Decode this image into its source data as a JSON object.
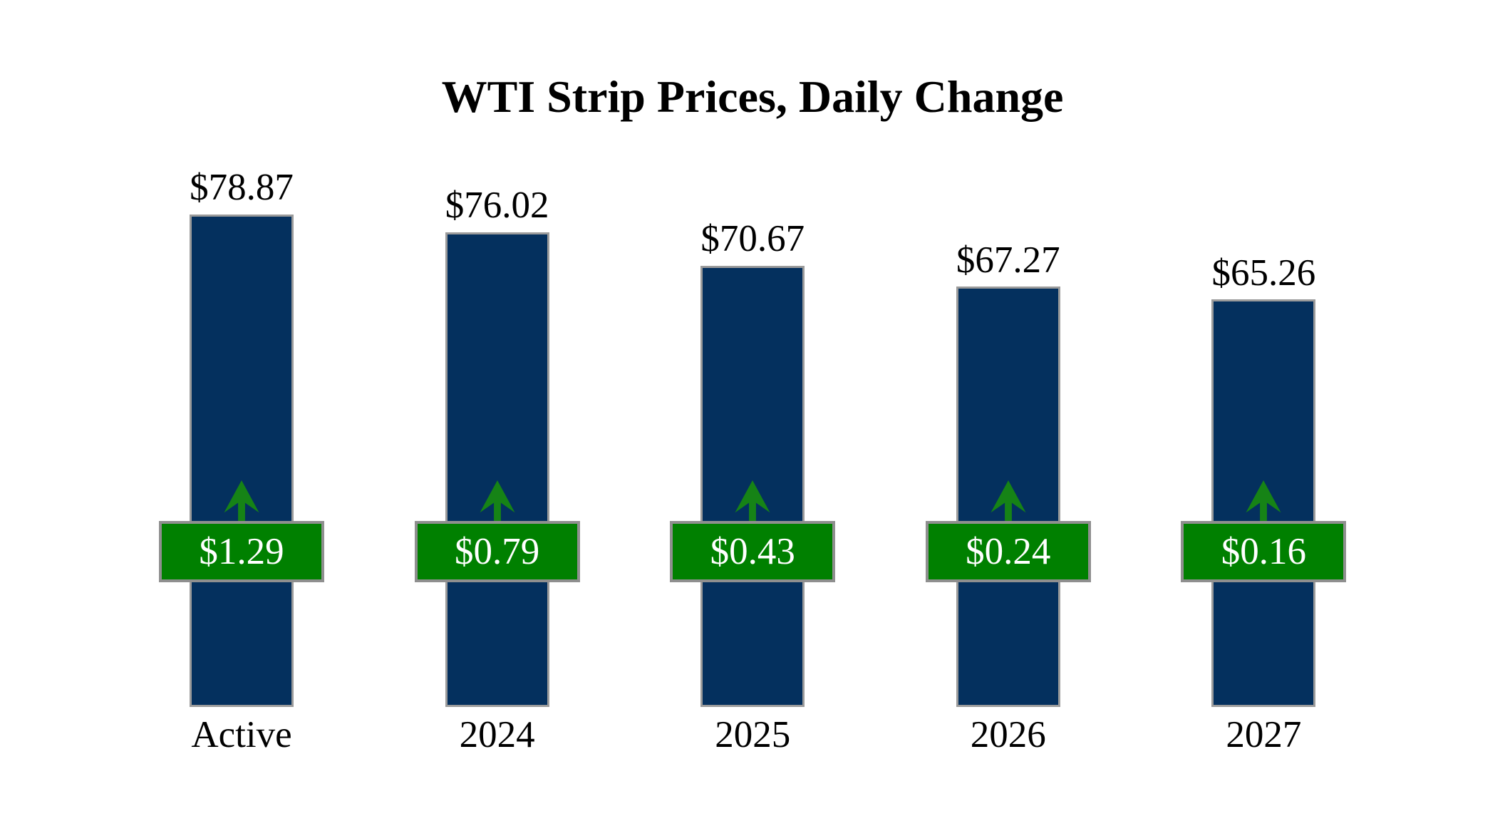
{
  "page": {
    "background": "#FFFFFF"
  },
  "chart_data": {
    "type": "bar",
    "title": "WTI Strip Prices, Daily Change",
    "categories": [
      "Active",
      "2024",
      "2025",
      "2026",
      "2027"
    ],
    "series": [
      {
        "name": "WTI strip price (US$/bbl)",
        "role": "bar-height",
        "values": [
          78.87,
          76.02,
          70.67,
          67.27,
          65.26
        ],
        "labels": [
          "$78.87",
          "$76.02",
          "$70.67",
          "$67.27",
          "$65.26"
        ]
      },
      {
        "name": "Daily change (US$)",
        "role": "badge-overlay",
        "values": [
          1.29,
          0.79,
          0.43,
          0.24,
          0.16
        ],
        "labels": [
          "$1.29",
          "$0.79",
          "$0.43",
          "$0.24",
          "$0.16"
        ],
        "direction": "up",
        "direction_icon": "up-arrow"
      }
    ],
    "axes": {
      "y_min": 0,
      "y_max_shown": 78.87,
      "axis_lines_visible": false,
      "gridlines_visible": false,
      "tick_labels_visible": false
    },
    "legend": {
      "visible": false
    },
    "colors": {
      "background": "#FFFFFF",
      "bar_fill": "#04305E",
      "bar_border": "#9B9B9B",
      "badge_fill": "#008000",
      "badge_border": "#8F8F8F",
      "badge_text": "#FFFFFF",
      "arrow_fill": "#168316",
      "title_text": "#000000",
      "label_text": "#000000"
    }
  }
}
